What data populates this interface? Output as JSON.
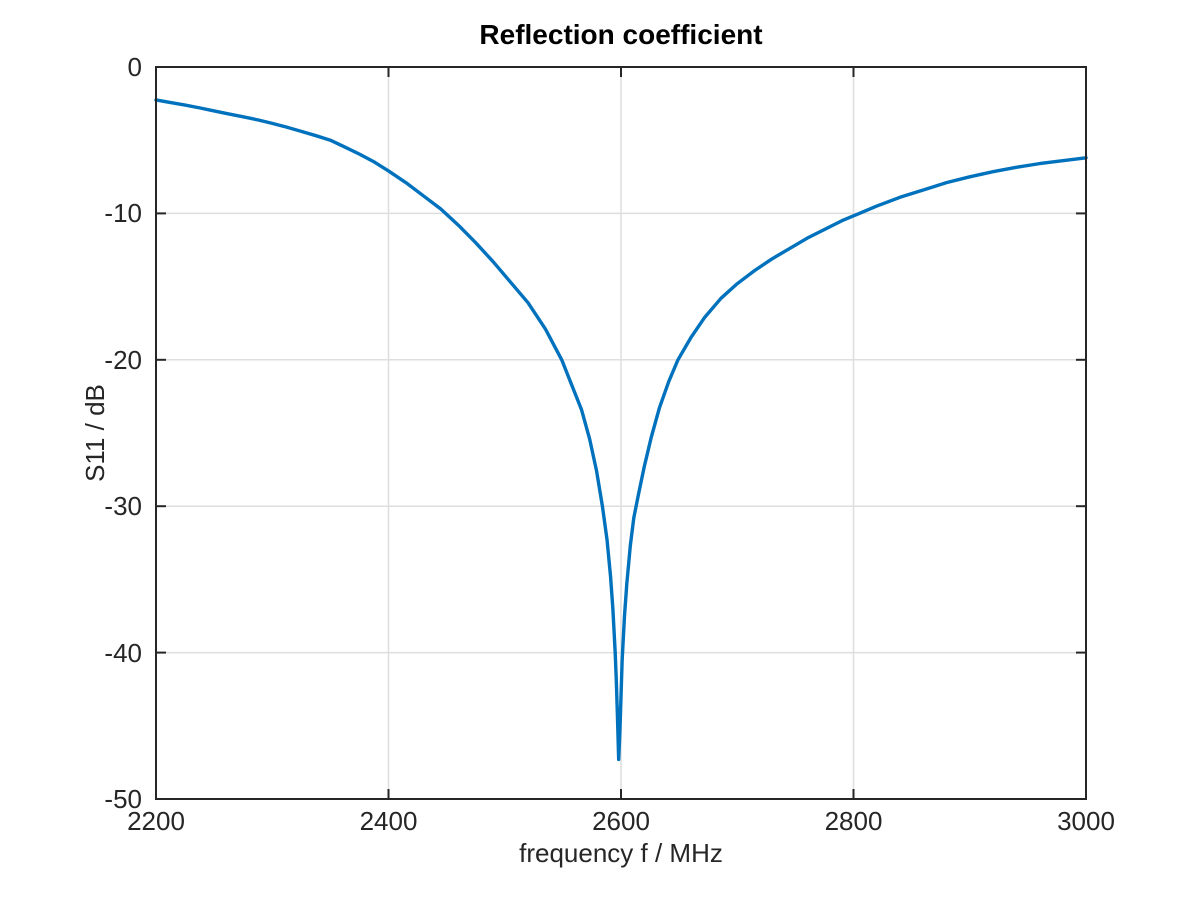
{
  "figure": {
    "background_color": "#ffffff"
  },
  "chart_data": {
    "type": "line",
    "title": "Reflection coefficient",
    "xlabel": "frequency f / MHz",
    "ylabel": "S11 / dB",
    "xlim": [
      2200,
      3000
    ],
    "ylim": [
      -50,
      0
    ],
    "xticks": [
      2200,
      2400,
      2600,
      2800,
      3000
    ],
    "yticks": [
      0,
      -10,
      -20,
      -30,
      -40,
      -50
    ],
    "grid": true,
    "legend": false,
    "line_color": "#0072BD",
    "grid_color": "#DEDEDE",
    "axis_color": "#262626",
    "title_color": "#000000",
    "resonance_min": {
      "frequency_mhz": 2598,
      "s11_db": -47.3
    },
    "series": [
      {
        "name": "S11",
        "points": [
          [
            2200,
            -2.25
          ],
          [
            2212,
            -2.42
          ],
          [
            2225,
            -2.6
          ],
          [
            2238,
            -2.8
          ],
          [
            2250,
            -3.0
          ],
          [
            2262,
            -3.2
          ],
          [
            2275,
            -3.4
          ],
          [
            2288,
            -3.62
          ],
          [
            2300,
            -3.85
          ],
          [
            2312,
            -4.1
          ],
          [
            2325,
            -4.4
          ],
          [
            2338,
            -4.7
          ],
          [
            2350,
            -5.0
          ],
          [
            2362,
            -5.45
          ],
          [
            2375,
            -5.95
          ],
          [
            2388,
            -6.5
          ],
          [
            2400,
            -7.1
          ],
          [
            2415,
            -7.9
          ],
          [
            2430,
            -8.8
          ],
          [
            2445,
            -9.7
          ],
          [
            2460,
            -10.8
          ],
          [
            2475,
            -12.0
          ],
          [
            2490,
            -13.3
          ],
          [
            2505,
            -14.7
          ],
          [
            2520,
            -16.1
          ],
          [
            2535,
            -17.9
          ],
          [
            2549,
            -20.0
          ],
          [
            2558,
            -21.8
          ],
          [
            2566,
            -23.4
          ],
          [
            2573,
            -25.4
          ],
          [
            2579,
            -27.6
          ],
          [
            2584,
            -30.0
          ],
          [
            2588,
            -32.3
          ],
          [
            2591,
            -34.8
          ],
          [
            2593,
            -37.0
          ],
          [
            2595,
            -40.0
          ],
          [
            2596,
            -42.0
          ],
          [
            2597,
            -44.5
          ],
          [
            2598,
            -47.3
          ],
          [
            2599,
            -45.5
          ],
          [
            2600,
            -43.0
          ],
          [
            2601,
            -40.5
          ],
          [
            2603,
            -37.5
          ],
          [
            2605,
            -35.3
          ],
          [
            2608,
            -32.7
          ],
          [
            2611,
            -30.8
          ],
          [
            2615,
            -29.2
          ],
          [
            2620,
            -27.3
          ],
          [
            2626,
            -25.3
          ],
          [
            2633,
            -23.3
          ],
          [
            2641,
            -21.5
          ],
          [
            2649,
            -20.0
          ],
          [
            2660,
            -18.5
          ],
          [
            2672,
            -17.1
          ],
          [
            2686,
            -15.8
          ],
          [
            2700,
            -14.8
          ],
          [
            2715,
            -13.9
          ],
          [
            2730,
            -13.1
          ],
          [
            2745,
            -12.4
          ],
          [
            2760,
            -11.7
          ],
          [
            2775,
            -11.1
          ],
          [
            2790,
            -10.5
          ],
          [
            2805,
            -10.0
          ],
          [
            2820,
            -9.5
          ],
          [
            2840,
            -8.9
          ],
          [
            2860,
            -8.4
          ],
          [
            2880,
            -7.9
          ],
          [
            2900,
            -7.5
          ],
          [
            2920,
            -7.15
          ],
          [
            2940,
            -6.85
          ],
          [
            2960,
            -6.6
          ],
          [
            2980,
            -6.4
          ],
          [
            3000,
            -6.2
          ]
        ]
      }
    ]
  }
}
